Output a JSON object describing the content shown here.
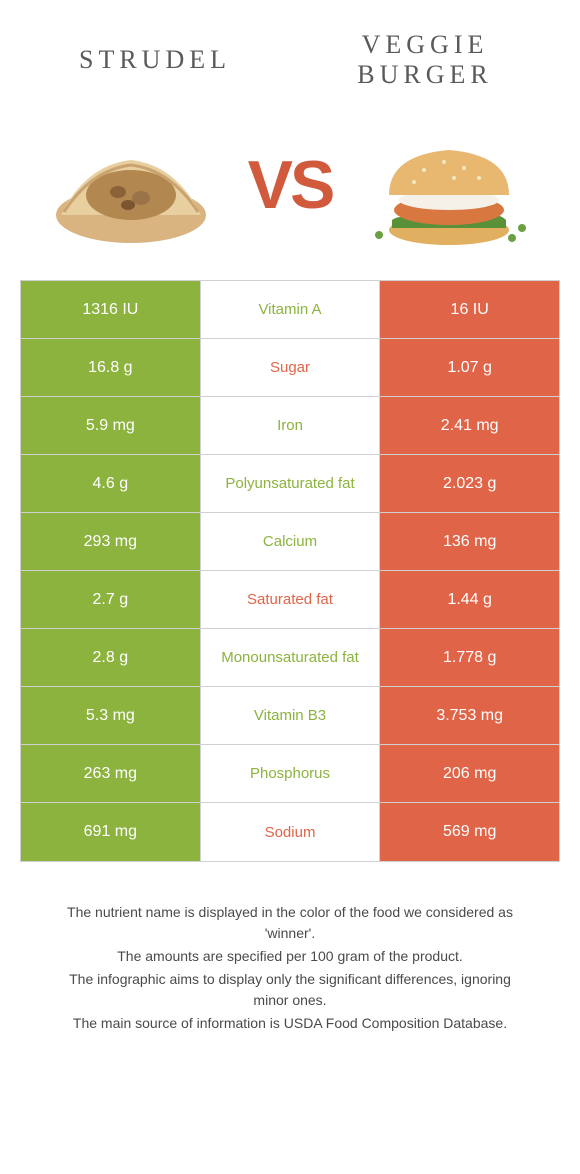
{
  "header": {
    "left_title": "STRUDEL",
    "right_title": "VEGGIE BURGER"
  },
  "vs_text": "VS",
  "colors": {
    "left": "#8cb33e",
    "right": "#e06548",
    "border": "#d0d0d0",
    "text_gray": "#5a5a5a",
    "footer_text": "#4a4a4a"
  },
  "rows": [
    {
      "left": "1316 IU",
      "nutrient": "Vitamin A",
      "right": "16 IU",
      "winner": "left"
    },
    {
      "left": "16.8 g",
      "nutrient": "Sugar",
      "right": "1.07 g",
      "winner": "right"
    },
    {
      "left": "5.9 mg",
      "nutrient": "Iron",
      "right": "2.41 mg",
      "winner": "left"
    },
    {
      "left": "4.6 g",
      "nutrient": "Polyunsaturated fat",
      "right": "2.023 g",
      "winner": "left"
    },
    {
      "left": "293 mg",
      "nutrient": "Calcium",
      "right": "136 mg",
      "winner": "left"
    },
    {
      "left": "2.7 g",
      "nutrient": "Saturated fat",
      "right": "1.44 g",
      "winner": "right"
    },
    {
      "left": "2.8 g",
      "nutrient": "Monounsaturated fat",
      "right": "1.778 g",
      "winner": "left"
    },
    {
      "left": "5.3 mg",
      "nutrient": "Vitamin B3",
      "right": "3.753 mg",
      "winner": "left"
    },
    {
      "left": "263 mg",
      "nutrient": "Phosphorus",
      "right": "206 mg",
      "winner": "left"
    },
    {
      "left": "691 mg",
      "nutrient": "Sodium",
      "right": "569 mg",
      "winner": "right"
    }
  ],
  "footer": {
    "line1": "The nutrient name is displayed in the color of the food we considered as 'winner'.",
    "line2": "The amounts are specified per 100 gram of the product.",
    "line3": "The infographic aims to display only the significant differences, ignoring minor ones.",
    "line4": "The main source of information is USDA Food Composition Database."
  }
}
